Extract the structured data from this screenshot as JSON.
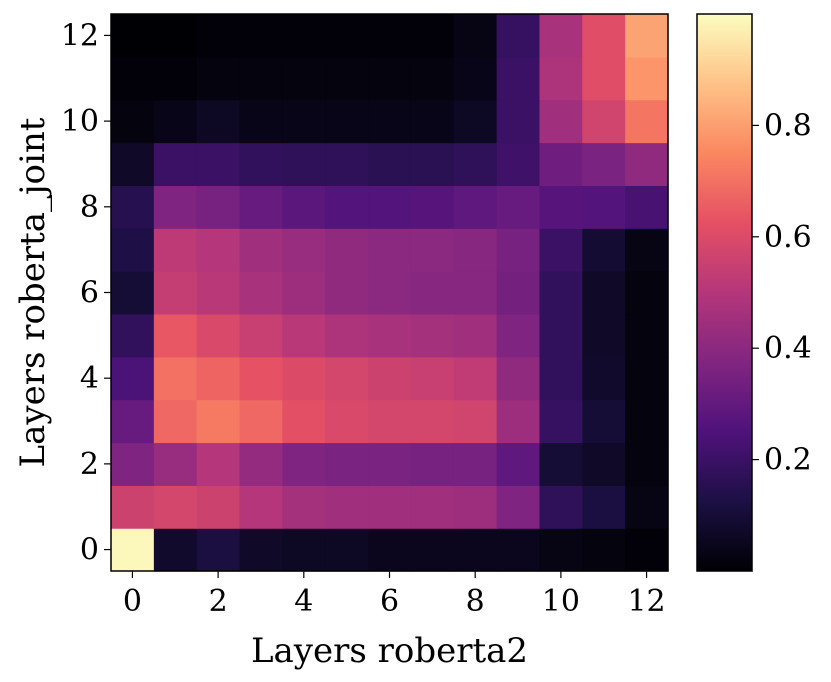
{
  "chart_data": {
    "type": "heatmap",
    "title": "",
    "xlabel": "Layers roberta2",
    "ylabel": "Layers roberta_joint",
    "colormap": "magma",
    "x_ticks": [
      "0",
      "2",
      "4",
      "6",
      "8",
      "10",
      "12"
    ],
    "y_ticks": [
      "0",
      "2",
      "4",
      "6",
      "8",
      "10",
      "12"
    ],
    "colorbar_ticks": [
      "0.2",
      "0.4",
      "0.6",
      "0.8"
    ],
    "vmin": 0.0,
    "vmax": 1.0,
    "rows_from_y0": [
      [
        0.99,
        0.08,
        0.12,
        0.07,
        0.06,
        0.06,
        0.05,
        0.05,
        0.05,
        0.05,
        0.03,
        0.02,
        0.01
      ],
      [
        0.56,
        0.58,
        0.56,
        0.5,
        0.46,
        0.45,
        0.45,
        0.45,
        0.44,
        0.37,
        0.17,
        0.12,
        0.03
      ],
      [
        0.37,
        0.43,
        0.5,
        0.42,
        0.37,
        0.36,
        0.36,
        0.35,
        0.35,
        0.29,
        0.1,
        0.07,
        0.02
      ],
      [
        0.31,
        0.68,
        0.72,
        0.68,
        0.62,
        0.59,
        0.58,
        0.58,
        0.57,
        0.44,
        0.19,
        0.1,
        0.02
      ],
      [
        0.24,
        0.7,
        0.67,
        0.63,
        0.6,
        0.58,
        0.56,
        0.55,
        0.53,
        0.41,
        0.18,
        0.08,
        0.02
      ],
      [
        0.18,
        0.64,
        0.59,
        0.55,
        0.51,
        0.48,
        0.47,
        0.46,
        0.45,
        0.37,
        0.18,
        0.07,
        0.02
      ],
      [
        0.1,
        0.54,
        0.51,
        0.47,
        0.44,
        0.41,
        0.4,
        0.39,
        0.39,
        0.34,
        0.18,
        0.07,
        0.02
      ],
      [
        0.13,
        0.52,
        0.5,
        0.45,
        0.43,
        0.41,
        0.4,
        0.4,
        0.39,
        0.35,
        0.2,
        0.09,
        0.03
      ],
      [
        0.15,
        0.37,
        0.35,
        0.31,
        0.28,
        0.26,
        0.26,
        0.27,
        0.29,
        0.31,
        0.27,
        0.26,
        0.23
      ],
      [
        0.07,
        0.2,
        0.2,
        0.18,
        0.17,
        0.17,
        0.16,
        0.16,
        0.17,
        0.21,
        0.33,
        0.36,
        0.41
      ],
      [
        0.02,
        0.04,
        0.06,
        0.04,
        0.04,
        0.04,
        0.04,
        0.04,
        0.06,
        0.2,
        0.45,
        0.57,
        0.71
      ],
      [
        0.01,
        0.01,
        0.02,
        0.02,
        0.02,
        0.02,
        0.02,
        0.02,
        0.04,
        0.2,
        0.48,
        0.61,
        0.78
      ],
      [
        0.0,
        0.0,
        0.01,
        0.01,
        0.01,
        0.01,
        0.01,
        0.01,
        0.03,
        0.19,
        0.47,
        0.61,
        0.81
      ]
    ]
  }
}
